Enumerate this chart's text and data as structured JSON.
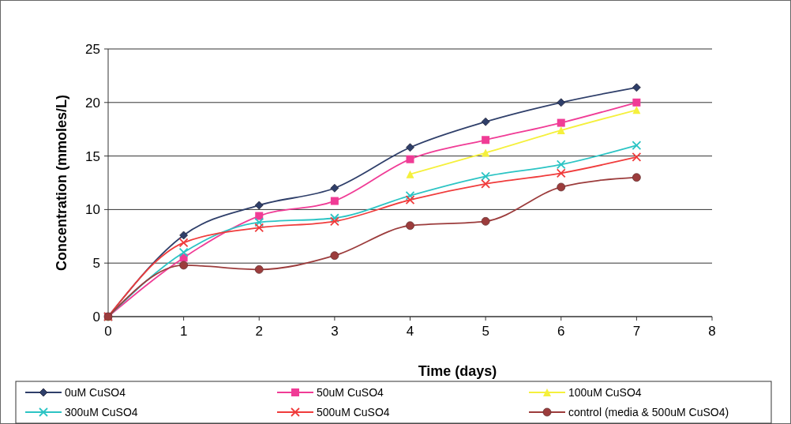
{
  "chart_data": {
    "type": "line",
    "xlabel": "Time (days)",
    "ylabel": "Concentration (mmoles/L)",
    "x": [
      0,
      1,
      2,
      3,
      4,
      5,
      6,
      7
    ],
    "xlim": [
      0,
      8
    ],
    "xticks": [
      0,
      1,
      2,
      3,
      4,
      5,
      6,
      7,
      8
    ],
    "ylim": [
      0,
      25
    ],
    "yticks": [
      0,
      5,
      10,
      15,
      20,
      25
    ],
    "grid": "y",
    "legend": "bottom",
    "series": [
      {
        "name": "0uM CuSO4",
        "color": "#2f3f6a",
        "marker": "diamond",
        "values": [
          0,
          7.6,
          10.4,
          12.0,
          15.8,
          18.2,
          20.0,
          21.4
        ]
      },
      {
        "name": "50uM CuSO4",
        "color": "#f03c96",
        "marker": "square",
        "values": [
          0,
          5.5,
          9.4,
          10.8,
          14.7,
          16.5,
          18.1,
          20.0
        ]
      },
      {
        "name": "100uM CuSO4",
        "color": "#f5f03c",
        "marker": "triangle",
        "values": [
          0,
          null,
          null,
          null,
          13.3,
          15.3,
          17.4,
          19.3
        ]
      },
      {
        "name": "300uM CuSO4",
        "color": "#2cc4c4",
        "marker": "cross",
        "values": [
          0,
          6.0,
          8.8,
          9.2,
          11.3,
          13.1,
          14.2,
          16.0
        ]
      },
      {
        "name": "500uM CuSO4",
        "color": "#f03c3c",
        "marker": "cross",
        "values": [
          0,
          6.9,
          8.3,
          8.9,
          10.9,
          12.4,
          13.4,
          14.9
        ]
      },
      {
        "name": "control (media & 500uM CuSO4)",
        "color": "#9c3c3c",
        "marker": "circle",
        "values": [
          0,
          4.8,
          4.4,
          5.7,
          8.5,
          8.9,
          12.1,
          13.0
        ]
      }
    ]
  }
}
